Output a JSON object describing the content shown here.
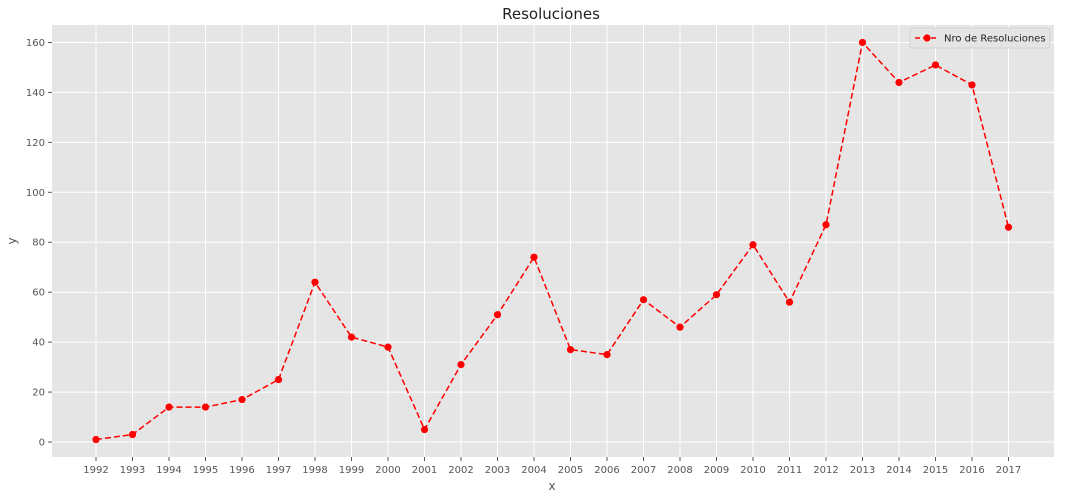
{
  "chart_data": {
    "type": "line",
    "title": "Resoluciones",
    "xlabel": "x",
    "ylabel": "y",
    "categories": [
      "1992",
      "1993",
      "1994",
      "1995",
      "1996",
      "1997",
      "1998",
      "1999",
      "2000",
      "2001",
      "2002",
      "2003",
      "2004",
      "2005",
      "2006",
      "2007",
      "2008",
      "2009",
      "2010",
      "2011",
      "2012",
      "2013",
      "2014",
      "2015",
      "2016",
      "2017"
    ],
    "series": [
      {
        "name": "Nro de Resoluciones",
        "values": [
          1,
          3,
          14,
          14,
          17,
          25,
          64,
          42,
          38,
          5,
          31,
          51,
          74,
          37,
          35,
          57,
          46,
          59,
          79,
          56,
          87,
          160,
          144,
          151,
          143,
          86
        ],
        "color": "#ff0000",
        "line_style": "dashed",
        "marker": "circle"
      }
    ],
    "ylim": [
      -6,
      167
    ],
    "yticks": [
      0,
      20,
      40,
      60,
      80,
      100,
      120,
      140,
      160
    ],
    "grid": true,
    "legend_position": "top-right",
    "background": "#e5e5e5",
    "grid_color": "#ffffff"
  }
}
